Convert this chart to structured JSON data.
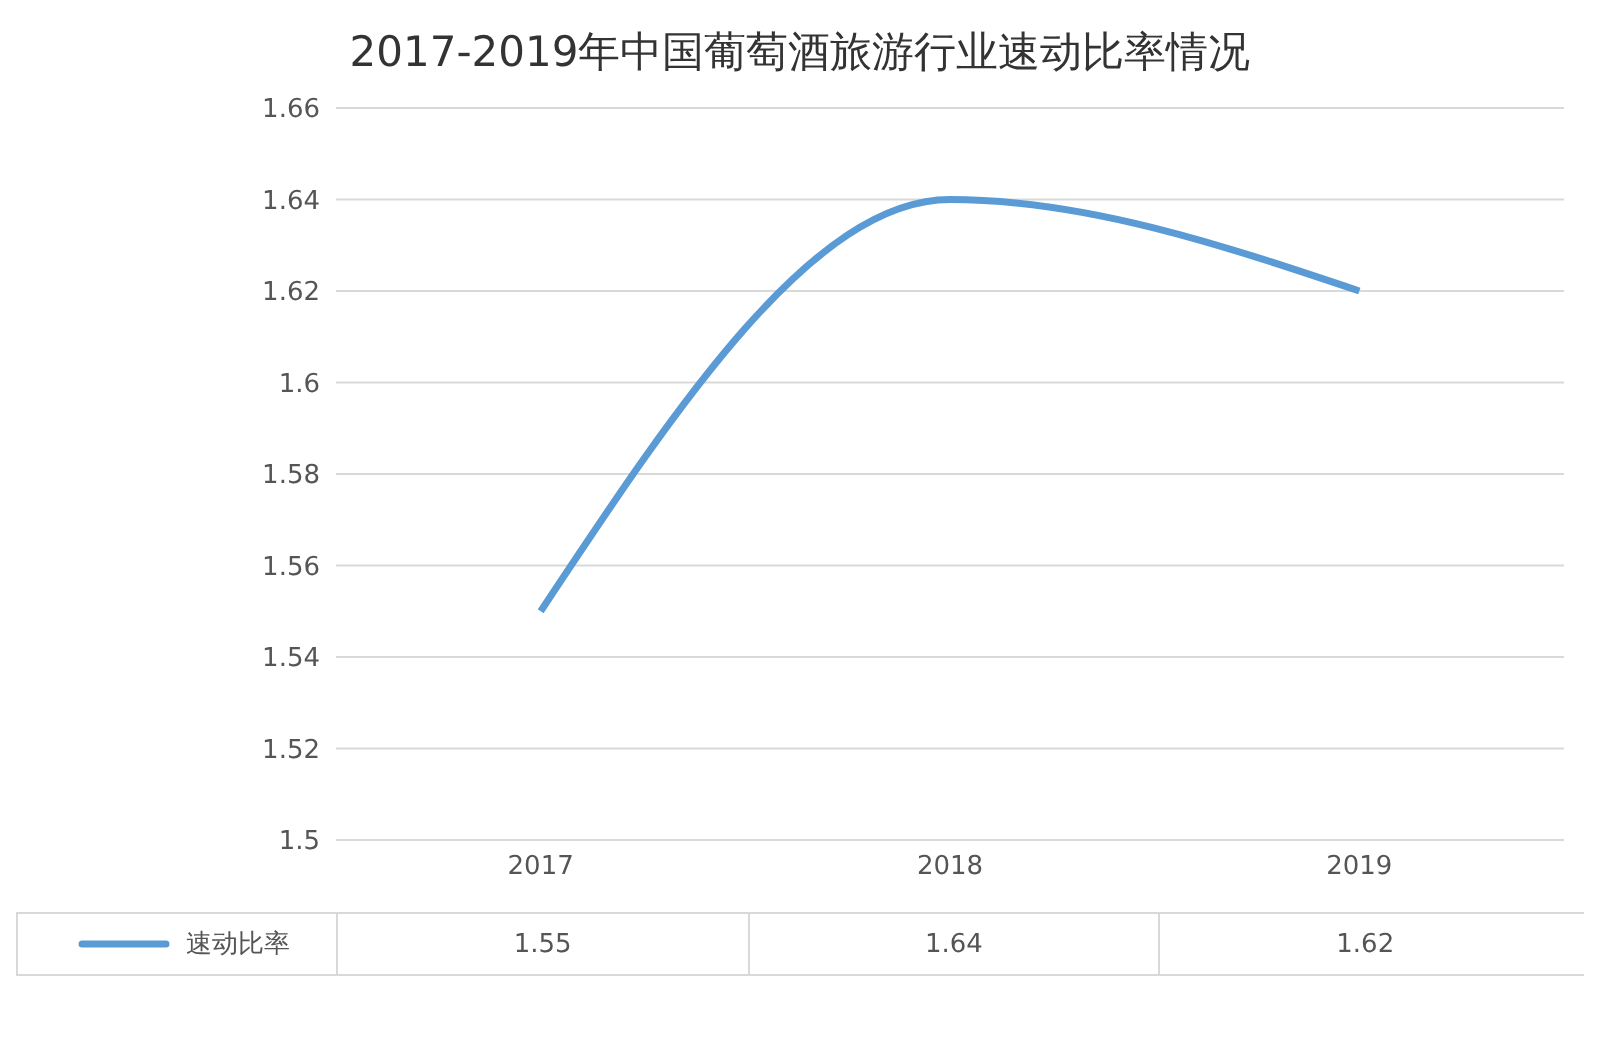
{
  "chart_data": {
    "type": "line",
    "title": "2017-2019年中国葡萄酒旅游行业速动比率情况",
    "categories": [
      "2017",
      "2018",
      "2019"
    ],
    "series": [
      {
        "name": "速动比率",
        "color": "#5b9bd5",
        "values": [
          1.55,
          1.64,
          1.62
        ]
      }
    ],
    "ylim": [
      1.5,
      1.66
    ],
    "yticks": [
      1.5,
      1.52,
      1.54,
      1.56,
      1.58,
      1.6,
      1.62,
      1.64,
      1.66
    ],
    "grid": "y",
    "legend": "bottom left",
    "data_labels": true,
    "marker": "none",
    "line_style": "solid"
  }
}
